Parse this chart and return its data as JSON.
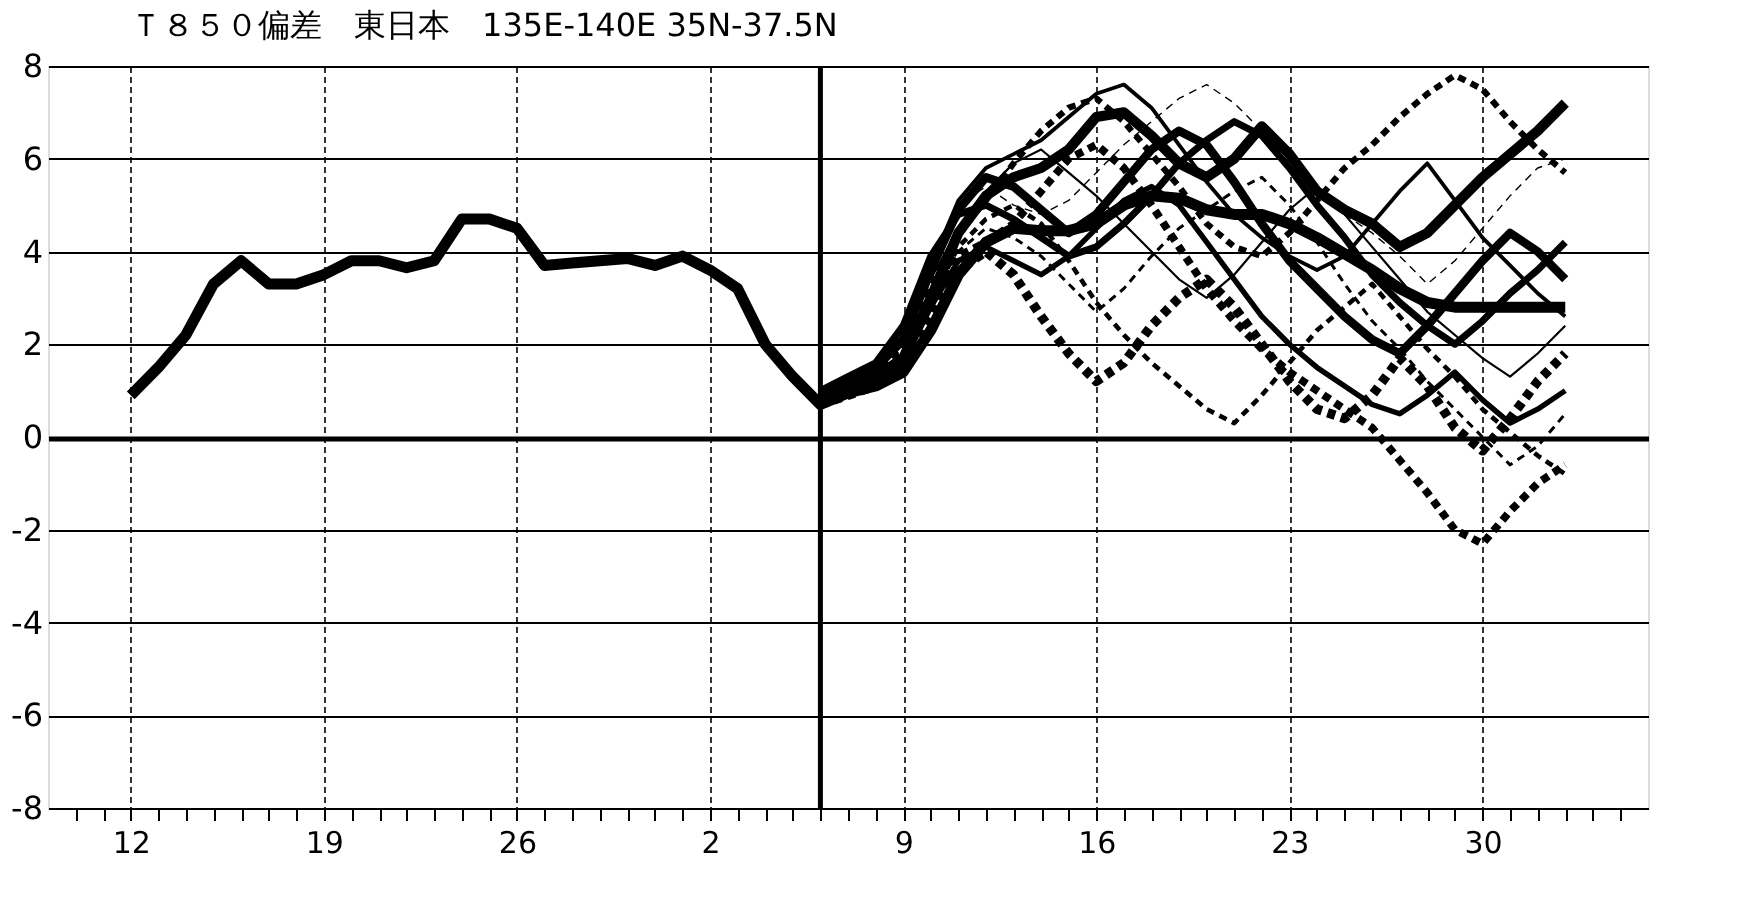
{
  "chart_data": {
    "type": "line",
    "title": "Ｔ８５０偏差　東日本　135E-140E  35N-37.5N",
    "categories": [
      null,
      null,
      "12",
      null,
      null,
      null,
      null,
      null,
      null,
      "19",
      null,
      null,
      null,
      null,
      null,
      null,
      "26",
      null,
      null,
      null,
      null,
      null,
      null,
      "2",
      null,
      null,
      null,
      null,
      null,
      null,
      "9",
      null,
      null,
      null,
      null,
      null,
      null,
      "16",
      null,
      null,
      null,
      null,
      null,
      null,
      "23",
      null,
      null,
      null,
      null,
      null,
      null,
      "30",
      null,
      null,
      null,
      null,
      null
    ],
    "ylim": [
      -8,
      8
    ],
    "yticks": [
      {
        "value": -8,
        "label": "-8"
      },
      {
        "value": -6,
        "label": "-6"
      },
      {
        "value": -4,
        "label": "-4"
      },
      {
        "value": -2,
        "label": "-2"
      },
      0,
      2,
      4,
      6,
      8
    ],
    "grid": true,
    "marker": "none",
    "series": [
      {
        "color": "#000000",
        "line_style": "solid",
        "values": [
          null,
          null,
          0.9,
          1.5,
          2.2,
          3.3,
          3.8,
          3.3,
          3.3,
          3.5,
          3.8,
          3.8,
          3.65,
          3.8,
          4.7,
          4.7,
          4.5,
          3.7,
          3.75,
          3.8,
          3.85,
          3.7,
          3.9,
          3.6,
          3.2,
          2.0,
          1.3,
          0.7,
          0.95,
          1.1,
          1.4,
          2.3,
          3.5,
          4.2,
          4.5,
          4.45,
          4.45,
          4.6,
          5.0,
          5.2,
          5.15,
          4.9,
          4.8,
          4.8,
          4.6,
          4.3,
          3.95,
          3.6,
          3.2,
          2.9,
          2.8,
          2.8,
          2.8,
          2.8,
          2.8,
          null,
          null
        ]
      },
      {
        "color": "#000000",
        "line_style": "solid",
        "values": [
          null,
          null,
          null,
          null,
          null,
          null,
          null,
          null,
          null,
          null,
          null,
          null,
          null,
          null,
          null,
          null,
          null,
          null,
          null,
          null,
          null,
          null,
          null,
          null,
          null,
          null,
          null,
          0.9,
          1.1,
          1.3,
          1.7,
          3.0,
          4.4,
          5.2,
          5.6,
          5.8,
          6.2,
          6.9,
          7.0,
          6.5,
          5.9,
          5.6,
          6.0,
          6.7,
          6.1,
          5.3,
          4.9,
          4.6,
          4.1,
          4.4,
          5.0,
          5.6,
          6.1,
          6.6,
          7.2,
          null,
          null
        ]
      },
      {
        "color": "#000000",
        "line_style": "dashed",
        "values": [
          null,
          null,
          null,
          null,
          null,
          null,
          null,
          null,
          null,
          null,
          null,
          null,
          null,
          null,
          null,
          null,
          null,
          null,
          null,
          null,
          null,
          null,
          null,
          null,
          null,
          null,
          null,
          0.7,
          0.9,
          1.1,
          1.5,
          2.5,
          3.6,
          4.0,
          3.5,
          2.6,
          1.8,
          1.2,
          1.6,
          2.4,
          3.0,
          3.4,
          2.8,
          2.0,
          1.2,
          0.6,
          0.4,
          0.9,
          1.7,
          1.1,
          0.2,
          -0.3,
          0.4,
          1.2,
          1.8,
          null,
          null
        ]
      },
      {
        "color": "#000000",
        "line_style": "solid",
        "values": [
          null,
          null,
          null,
          null,
          null,
          null,
          null,
          null,
          null,
          null,
          null,
          null,
          null,
          null,
          null,
          null,
          null,
          null,
          null,
          null,
          null,
          null,
          null,
          null,
          null,
          null,
          null,
          0.9,
          1.2,
          1.5,
          2.1,
          3.6,
          4.9,
          5.6,
          5.4,
          4.9,
          4.4,
          4.8,
          5.5,
          6.2,
          6.6,
          6.3,
          5.5,
          4.6,
          3.8,
          3.2,
          2.6,
          2.1,
          1.8,
          2.4,
          3.1,
          3.8,
          4.4,
          4.0,
          3.4,
          null,
          null
        ]
      },
      {
        "color": "#000000",
        "line_style": "dashed",
        "values": [
          null,
          null,
          null,
          null,
          null,
          null,
          null,
          null,
          null,
          null,
          null,
          null,
          null,
          null,
          null,
          null,
          null,
          null,
          null,
          null,
          null,
          null,
          null,
          null,
          null,
          null,
          null,
          0.8,
          1.0,
          1.4,
          1.9,
          3.1,
          3.9,
          4.2,
          4.6,
          5.3,
          6.0,
          6.3,
          5.8,
          5.0,
          4.1,
          3.2,
          2.5,
          1.9,
          1.4,
          1.0,
          0.6,
          0.2,
          -0.5,
          -1.2,
          -2.0,
          -2.3,
          -1.6,
          -1.0,
          -0.6,
          null,
          null
        ]
      },
      {
        "color": "#000000",
        "line_style": "solid",
        "values": [
          null,
          null,
          null,
          null,
          null,
          null,
          null,
          null,
          null,
          null,
          null,
          null,
          null,
          null,
          null,
          null,
          null,
          null,
          null,
          null,
          null,
          null,
          null,
          null,
          null,
          null,
          null,
          1.0,
          1.3,
          1.6,
          2.4,
          3.9,
          4.8,
          5.0,
          4.7,
          4.3,
          3.9,
          4.1,
          4.6,
          5.2,
          5.9,
          6.4,
          6.8,
          6.5,
          5.8,
          5.0,
          4.3,
          3.5,
          2.9,
          2.4,
          2.0,
          2.5,
          3.1,
          3.6,
          4.2,
          null,
          null
        ]
      },
      {
        "color": "#000000",
        "line_style": "dashed",
        "values": [
          null,
          null,
          null,
          null,
          null,
          null,
          null,
          null,
          null,
          null,
          null,
          null,
          null,
          null,
          null,
          null,
          null,
          null,
          null,
          null,
          null,
          null,
          null,
          null,
          null,
          null,
          null,
          0.8,
          1.1,
          1.4,
          2.0,
          3.3,
          4.4,
          5.1,
          5.9,
          6.6,
          7.1,
          7.3,
          6.8,
          6.1,
          5.4,
          4.6,
          4.1,
          3.9,
          4.4,
          5.1,
          5.8,
          6.3,
          6.9,
          7.4,
          7.8,
          7.5,
          6.8,
          6.2,
          5.7,
          null,
          null
        ]
      },
      {
        "color": "#000000",
        "line_style": "solid",
        "values": [
          null,
          null,
          null,
          null,
          null,
          null,
          null,
          null,
          null,
          null,
          null,
          null,
          null,
          null,
          null,
          null,
          null,
          null,
          null,
          null,
          null,
          null,
          null,
          null,
          null,
          null,
          null,
          0.9,
          1.0,
          1.2,
          1.6,
          2.8,
          3.8,
          4.1,
          3.8,
          3.5,
          3.9,
          4.5,
          5.1,
          5.4,
          5.0,
          4.2,
          3.4,
          2.6,
          2.0,
          1.5,
          1.1,
          0.7,
          0.5,
          0.9,
          1.4,
          0.8,
          0.3,
          0.6,
          1.0,
          null,
          null
        ]
      },
      {
        "color": "#000000",
        "line_style": "dashed",
        "values": [
          null,
          null,
          null,
          null,
          null,
          null,
          null,
          null,
          null,
          null,
          null,
          null,
          null,
          null,
          null,
          null,
          null,
          null,
          null,
          null,
          null,
          null,
          null,
          null,
          null,
          null,
          null,
          0.7,
          0.9,
          1.2,
          1.7,
          2.9,
          4.1,
          4.7,
          5.0,
          4.6,
          3.8,
          2.9,
          2.2,
          1.6,
          1.1,
          0.6,
          0.3,
          0.9,
          1.6,
          2.3,
          2.8,
          3.3,
          2.6,
          1.9,
          1.3,
          0.6,
          0.1,
          -0.4,
          -0.8,
          null,
          null
        ]
      },
      {
        "color": "#000000",
        "line_style": "solid",
        "values": [
          null,
          null,
          null,
          null,
          null,
          null,
          null,
          null,
          null,
          null,
          null,
          null,
          null,
          null,
          null,
          null,
          null,
          null,
          null,
          null,
          null,
          null,
          null,
          null,
          null,
          null,
          null,
          1.0,
          1.2,
          1.5,
          2.2,
          3.7,
          5.1,
          5.8,
          6.1,
          6.4,
          6.9,
          7.4,
          7.6,
          7.1,
          6.3,
          5.5,
          4.8,
          4.3,
          3.9,
          3.6,
          3.9,
          4.6,
          5.3,
          5.9,
          5.1,
          4.3,
          3.7,
          3.1,
          2.6,
          null,
          null
        ]
      },
      {
        "color": "#000000",
        "line_style": "dashed",
        "values": [
          null,
          null,
          null,
          null,
          null,
          null,
          null,
          null,
          null,
          null,
          null,
          null,
          null,
          null,
          null,
          null,
          null,
          null,
          null,
          null,
          null,
          null,
          null,
          null,
          null,
          null,
          null,
          0.8,
          1.0,
          1.3,
          1.8,
          3.0,
          4.0,
          4.5,
          4.3,
          3.9,
          3.3,
          2.7,
          3.2,
          3.9,
          4.5,
          4.9,
          5.3,
          5.6,
          5.0,
          4.2,
          3.3,
          2.5,
          1.9,
          1.2,
          0.6,
          0.0,
          -0.6,
          -0.2,
          0.5,
          null,
          null
        ]
      },
      {
        "color": "#000000",
        "line_style": "solid",
        "values": [
          null,
          null,
          null,
          null,
          null,
          null,
          null,
          null,
          null,
          null,
          null,
          null,
          null,
          null,
          null,
          null,
          null,
          null,
          null,
          null,
          null,
          null,
          null,
          null,
          null,
          null,
          null,
          0.9,
          1.1,
          1.4,
          2.0,
          3.4,
          4.5,
          5.3,
          5.9,
          6.2,
          5.7,
          5.2,
          4.6,
          4.0,
          3.4,
          3.0,
          3.5,
          4.2,
          4.9,
          5.4,
          4.8,
          4.1,
          3.4,
          2.7,
          2.2,
          1.7,
          1.3,
          1.8,
          2.4,
          null,
          null
        ]
      },
      {
        "color": "#000000",
        "line_style": "dashed",
        "values": [
          null,
          null,
          null,
          null,
          null,
          null,
          null,
          null,
          null,
          null,
          null,
          null,
          null,
          null,
          null,
          null,
          null,
          null,
          null,
          null,
          null,
          null,
          null,
          null,
          null,
          null,
          null,
          0.9,
          1.2,
          1.6,
          2.3,
          3.8,
          5.0,
          5.4,
          5.0,
          4.8,
          5.1,
          5.7,
          6.3,
          6.8,
          7.3,
          7.6,
          7.2,
          6.6,
          5.9,
          5.2,
          4.8,
          4.4,
          3.9,
          3.3,
          3.8,
          4.5,
          5.2,
          5.8,
          6.0,
          null,
          null
        ]
      }
    ]
  }
}
